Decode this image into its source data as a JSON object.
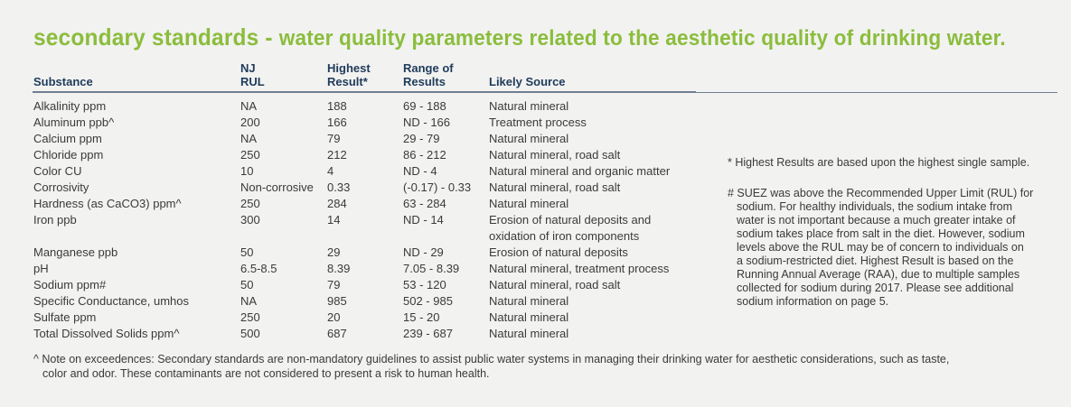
{
  "title": {
    "prefix": "secondary standards - ",
    "main": "water quality parameters related to the aesthetic quality of drinking water."
  },
  "headers": {
    "substance": "Substance",
    "nj_rul": [
      "NJ",
      "RUL"
    ],
    "highest": [
      "Highest",
      "Result*"
    ],
    "range": [
      "Range of",
      "Results"
    ],
    "source": "Likely Source"
  },
  "rows": [
    {
      "substance": "Alkalinity ppm",
      "rul": "NA",
      "highest": "188",
      "range": "69 - 188",
      "source": "Natural mineral"
    },
    {
      "substance": "Aluminum ppb^",
      "rul": "200",
      "highest": "166",
      "range": "ND - 166",
      "source": "Treatment process"
    },
    {
      "substance": "Calcium ppm",
      "rul": "NA",
      "highest": "79",
      "range": "29 - 79",
      "source": "Natural mineral"
    },
    {
      "substance": "Chloride ppm",
      "rul": "250",
      "highest": "212",
      "range": "86 - 212",
      "source": "Natural mineral, road salt"
    },
    {
      "substance": "Color CU",
      "rul": "10",
      "highest": "4",
      "range": "ND - 4",
      "source": "Natural mineral and organic matter"
    },
    {
      "substance": "Corrosivity",
      "rul": "Non-corrosive",
      "highest": "0.33",
      "range": "(-0.17) - 0.33",
      "source": "Natural mineral, road salt"
    },
    {
      "substance": "Hardness (as CaCO3) ppm^",
      "rul": "250",
      "highest": "284",
      "range": "63 - 284",
      "source": "Natural mineral"
    },
    {
      "substance": "Iron ppb",
      "rul": "300",
      "highest": "14",
      "range": "ND - 14",
      "source": "Erosion of natural deposits and",
      "source2": "oxidation of iron components"
    },
    {
      "substance": "Manganese ppb",
      "rul": "50",
      "highest": "29",
      "range": "ND - 29",
      "source": "Erosion of natural deposits"
    },
    {
      "substance": "pH",
      "rul": "6.5-8.5",
      "highest": "8.39",
      "range": "7.05 - 8.39",
      "source": "Natural mineral, treatment process"
    },
    {
      "substance": "Sodium ppm#",
      "rul": "50",
      "highest": "79",
      "range": "53 - 120",
      "source": "Natural mineral, road salt"
    },
    {
      "substance": "Specific Conductance, umhos",
      "rul": "NA",
      "highest": "985",
      "range": "502 - 985",
      "source": "Natural mineral"
    },
    {
      "substance": "Sulfate ppm",
      "rul": "250",
      "highest": "20",
      "range": "15 - 20",
      "source": "Natural mineral"
    },
    {
      "substance": "Total Dissolved Solids ppm^",
      "rul": "500",
      "highest": "687",
      "range": "239 - 687",
      "source": "Natural mineral"
    }
  ],
  "notes": {
    "highest": "* Highest Results are based upon the highest single sample.",
    "sodium": [
      "# SUEZ was above the Recommended Upper Limit (RUL) for",
      "sodium.  For healthy individuals, the sodium intake from",
      "water is not important because a much greater intake of",
      "sodium takes place from salt in the diet.  However, sodium",
      "levels above the RUL may be of concern to individuals on",
      "a sodium-restricted diet.  Highest Result is based on the",
      "Running Annual Average (RAA), due to multiple samples",
      "collected for sodium during 2017.  Please see additional",
      "sodium information on page 5."
    ]
  },
  "footnote": [
    "^ Note on exceedences: Secondary standards are non-mandatory guidelines to assist public water systems in managing their drinking water for aesthetic considerations, such as taste,",
    "color and odor.  These contaminants are not considered to present a risk to human health."
  ]
}
